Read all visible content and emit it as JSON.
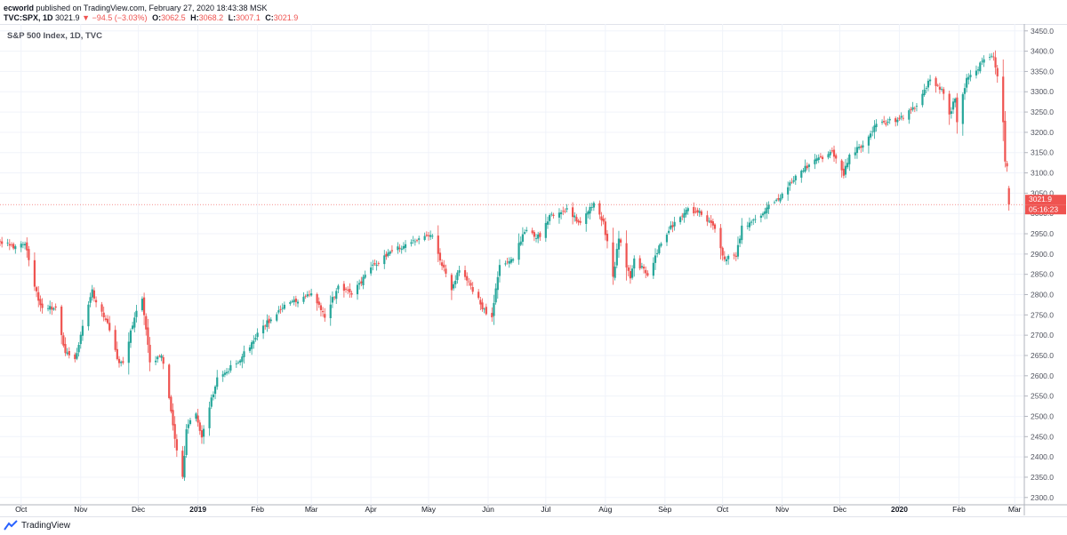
{
  "header": {
    "author": "ecworld",
    "published": "published on TradingView.com, February 27, 2020 18:43:38 MSK",
    "symbol": "TVC:SPX, 1D",
    "last": "3021.9",
    "change": "−94.5 (−3.03%)",
    "open_label": "O:",
    "open": "3062.5",
    "high_label": "H:",
    "high": "3068.2",
    "low_label": "L:",
    "low": "3007.1",
    "close_label": "C:",
    "close": "3021.9"
  },
  "footer": {
    "brand": "TradingView",
    "logo_icon": "tradingview-logo-icon"
  },
  "colors": {
    "up": "#26a69a",
    "down": "#ef5350",
    "grid": "#f0f3fa",
    "axis_text": "#50535e"
  },
  "chart_data": {
    "type": "candlestick",
    "title": "S&P 500 Index, 1D, TVC",
    "ylim": [
      2282,
      3467
    ],
    "yticks": [
      2300,
      2350,
      2400,
      2450,
      2500,
      2550,
      2600,
      2650,
      2700,
      2750,
      2800,
      2850,
      2900,
      2950,
      3000,
      3050,
      3100,
      3150,
      3200,
      3250,
      3300,
      3350,
      3400,
      3450
    ],
    "xlim": [
      "2018-09-20",
      "2020-03-06"
    ],
    "xticks": [
      {
        "label": "Oct",
        "date": "2018-10-01",
        "bold": false
      },
      {
        "label": "Nov",
        "date": "2018-11-01",
        "bold": false
      },
      {
        "label": "Dec",
        "date": "2018-12-01",
        "bold": false
      },
      {
        "label": "2019",
        "date": "2019-01-01",
        "bold": true
      },
      {
        "label": "Feb",
        "date": "2019-02-01",
        "bold": false
      },
      {
        "label": "Mar",
        "date": "2019-03-01",
        "bold": false
      },
      {
        "label": "Apr",
        "date": "2019-04-01",
        "bold": false
      },
      {
        "label": "May",
        "date": "2019-05-01",
        "bold": false
      },
      {
        "label": "Jun",
        "date": "2019-06-01",
        "bold": false
      },
      {
        "label": "Jul",
        "date": "2019-07-01",
        "bold": false
      },
      {
        "label": "Aug",
        "date": "2019-08-01",
        "bold": false
      },
      {
        "label": "Sep",
        "date": "2019-09-01",
        "bold": false
      },
      {
        "label": "Oct",
        "date": "2019-10-01",
        "bold": false
      },
      {
        "label": "Nov",
        "date": "2019-11-01",
        "bold": false
      },
      {
        "label": "Dec",
        "date": "2019-12-01",
        "bold": false
      },
      {
        "label": "2020",
        "date": "2020-01-01",
        "bold": true
      },
      {
        "label": "Feb",
        "date": "2020-02-01",
        "bold": false
      },
      {
        "label": "Mar",
        "date": "2020-03-01",
        "bold": false
      }
    ],
    "last_price": {
      "value": 3021.9,
      "label": "3021.9",
      "countdown": "05:16:23"
    },
    "close_anchors": [
      [
        "2018-09-20",
        2930
      ],
      [
        "2018-09-27",
        2914
      ],
      [
        "2018-10-03",
        2925
      ],
      [
        "2018-10-05",
        2885
      ],
      [
        "2018-10-10",
        2785
      ],
      [
        "2018-10-12",
        2767
      ],
      [
        "2018-10-19",
        2768
      ],
      [
        "2018-10-24",
        2656
      ],
      [
        "2018-10-29",
        2641
      ],
      [
        "2018-11-02",
        2723
      ],
      [
        "2018-11-07",
        2813
      ],
      [
        "2018-11-09",
        2781
      ],
      [
        "2018-11-15",
        2730
      ],
      [
        "2018-11-20",
        2641
      ],
      [
        "2018-11-23",
        2632
      ],
      [
        "2018-11-30",
        2760
      ],
      [
        "2018-12-03",
        2790
      ],
      [
        "2018-12-07",
        2633
      ],
      [
        "2018-12-13",
        2650
      ],
      [
        "2018-12-17",
        2545
      ],
      [
        "2018-12-21",
        2416
      ],
      [
        "2018-12-24",
        2351
      ],
      [
        "2018-12-26",
        2468
      ],
      [
        "2018-12-31",
        2507
      ],
      [
        "2019-01-03",
        2448
      ],
      [
        "2019-01-11",
        2596
      ],
      [
        "2019-01-22",
        2633
      ],
      [
        "2019-02-01",
        2706
      ],
      [
        "2019-02-15",
        2775
      ],
      [
        "2019-03-01",
        2803
      ],
      [
        "2019-03-08",
        2743
      ],
      [
        "2019-03-15",
        2822
      ],
      [
        "2019-03-22",
        2800
      ],
      [
        "2019-04-01",
        2867
      ],
      [
        "2019-04-12",
        2907
      ],
      [
        "2019-04-23",
        2934
      ],
      [
        "2019-04-30",
        2945
      ],
      [
        "2019-05-03",
        2945
      ],
      [
        "2019-05-07",
        2884
      ],
      [
        "2019-05-13",
        2811
      ],
      [
        "2019-05-17",
        2860
      ],
      [
        "2019-05-23",
        2822
      ],
      [
        "2019-05-31",
        2752
      ],
      [
        "2019-06-03",
        2744
      ],
      [
        "2019-06-07",
        2873
      ],
      [
        "2019-06-14",
        2887
      ],
      [
        "2019-06-20",
        2954
      ],
      [
        "2019-06-28",
        2942
      ],
      [
        "2019-07-03",
        2996
      ],
      [
        "2019-07-12",
        3013
      ],
      [
        "2019-07-19",
        2977
      ],
      [
        "2019-07-26",
        3026
      ],
      [
        "2019-07-31",
        2980
      ],
      [
        "2019-08-05",
        2844
      ],
      [
        "2019-08-08",
        2938
      ],
      [
        "2019-08-14",
        2840
      ],
      [
        "2019-08-16",
        2889
      ],
      [
        "2019-08-23",
        2847
      ],
      [
        "2019-08-30",
        2926
      ],
      [
        "2019-09-06",
        2979
      ],
      [
        "2019-09-12",
        3009
      ],
      [
        "2019-09-19",
        3006
      ],
      [
        "2019-09-27",
        2962
      ],
      [
        "2019-10-02",
        2887
      ],
      [
        "2019-10-08",
        2893
      ],
      [
        "2019-10-11",
        2970
      ],
      [
        "2019-10-18",
        2986
      ],
      [
        "2019-10-25",
        3022
      ],
      [
        "2019-10-31",
        3038
      ],
      [
        "2019-11-08",
        3093
      ],
      [
        "2019-11-15",
        3120
      ],
      [
        "2019-11-27",
        3153
      ],
      [
        "2019-12-03",
        3093
      ],
      [
        "2019-12-06",
        3145
      ],
      [
        "2019-12-13",
        3168
      ],
      [
        "2019-12-20",
        3221
      ],
      [
        "2019-12-31",
        3231
      ],
      [
        "2020-01-03",
        3235
      ],
      [
        "2020-01-10",
        3265
      ],
      [
        "2020-01-17",
        3330
      ],
      [
        "2020-01-24",
        3295
      ],
      [
        "2020-01-27",
        3244
      ],
      [
        "2020-01-30",
        3283
      ],
      [
        "2020-01-31",
        3225
      ],
      [
        "2020-02-05",
        3334
      ],
      [
        "2020-02-10",
        3352
      ],
      [
        "2020-02-14",
        3380
      ],
      [
        "2020-02-19",
        3386
      ],
      [
        "2020-02-21",
        3338
      ],
      [
        "2020-02-24",
        3225
      ],
      [
        "2020-02-25",
        3128
      ],
      [
        "2020-02-26",
        3116
      ],
      [
        "2020-02-27",
        3021.9
      ]
    ],
    "last_bar": {
      "date": "2020-02-27",
      "open": 3062.5,
      "high": 3068.2,
      "low": 3007.1,
      "close": 3021.9
    }
  }
}
